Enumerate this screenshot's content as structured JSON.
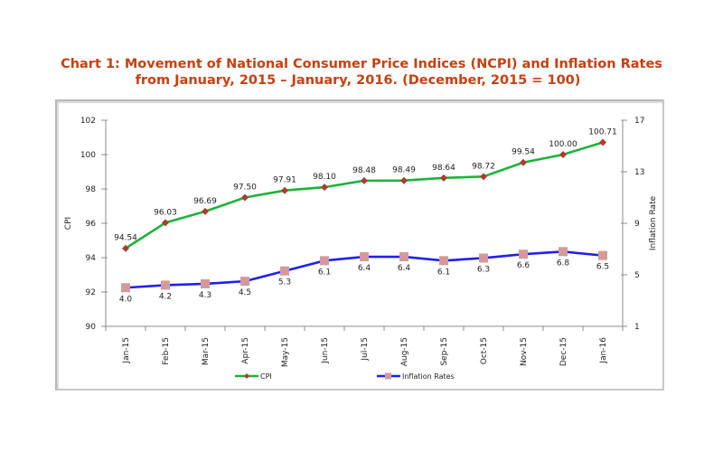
{
  "chart_data": {
    "type": "line",
    "title_line1": "Chart 1: Movement of National Consumer Price Indices (NCPI) and Inflation Rates",
    "title_line2": "from January, 2015 – January, 2016. (December, 2015 = 100)",
    "categories": [
      "Jan-15",
      "Feb-15",
      "Mar-15",
      "Apr-15",
      "May-15",
      "Jun-15",
      "Jul-15",
      "Aug-15",
      "Sep-15",
      "Oct-15",
      "Nov-15",
      "Dec-15",
      "Jan-16"
    ],
    "ylabel": "CPI",
    "y2label": "Inflation Rate",
    "ylim": [
      90,
      102
    ],
    "yticks": [
      "90",
      "92",
      "94",
      "96",
      "98",
      "100",
      "102"
    ],
    "y2lim": [
      1,
      17
    ],
    "y2ticks": [
      "1",
      "5",
      "9",
      "13",
      "17"
    ],
    "legend_position": "bottom",
    "series": [
      {
        "name": "CPI",
        "axis": "left",
        "color": "#1db33a",
        "marker_color": "#b03a2e",
        "marker": "diamond",
        "values": [
          94.54,
          96.03,
          96.69,
          97.5,
          97.91,
          98.1,
          98.48,
          98.49,
          98.64,
          98.72,
          99.54,
          100.0,
          100.71
        ],
        "labels": [
          "94.54",
          "96.03",
          "96.69",
          "97.50",
          "97.91",
          "98.10",
          "98.48",
          "98.49",
          "98.64",
          "98.72",
          "99.54",
          "100.00",
          "100.71"
        ]
      },
      {
        "name": "Inflation Rates",
        "axis": "right",
        "color": "#2020ee",
        "marker_color": "#d49a9a",
        "marker": "square",
        "values": [
          4.0,
          4.2,
          4.3,
          4.5,
          5.3,
          6.1,
          6.4,
          6.4,
          6.1,
          6.3,
          6.6,
          6.8,
          6.5
        ],
        "labels": [
          "4.0",
          "4.2",
          "4.3",
          "4.5",
          "5.3",
          "6.1",
          "6.4",
          "6.4",
          "6.1",
          "6.3",
          "6.6",
          "6.8",
          "6.5"
        ]
      }
    ]
  }
}
